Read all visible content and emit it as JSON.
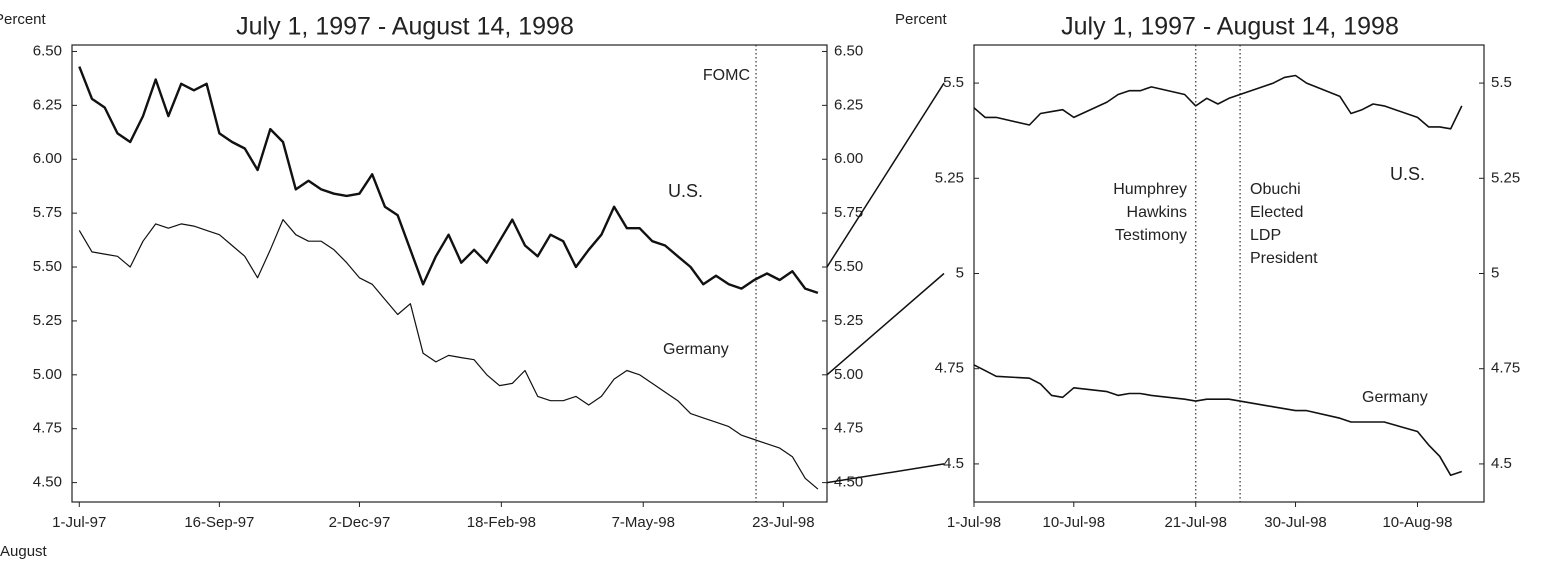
{
  "note": "August",
  "chart_data": [
    {
      "type": "line",
      "title": "July 1, 1997 - August 14, 1998",
      "ylabel": "Percent",
      "x": [
        "1997-07-01",
        "1997-07-08",
        "1997-07-15",
        "1997-07-22",
        "1997-07-29",
        "1997-08-05",
        "1997-08-12",
        "1997-08-19",
        "1997-08-26",
        "1997-09-02",
        "1997-09-09",
        "1997-09-16",
        "1997-09-23",
        "1997-09-30",
        "1997-10-07",
        "1997-10-14",
        "1997-10-21",
        "1997-10-28",
        "1997-11-04",
        "1997-11-11",
        "1997-11-18",
        "1997-11-25",
        "1997-12-02",
        "1997-12-09",
        "1997-12-16",
        "1997-12-23",
        "1997-12-30",
        "1998-01-06",
        "1998-01-13",
        "1998-01-20",
        "1998-01-27",
        "1998-02-03",
        "1998-02-10",
        "1998-02-17",
        "1998-02-24",
        "1998-03-03",
        "1998-03-10",
        "1998-03-17",
        "1998-03-24",
        "1998-03-31",
        "1998-04-07",
        "1998-04-14",
        "1998-04-21",
        "1998-04-28",
        "1998-05-05",
        "1998-05-12",
        "1998-05-19",
        "1998-05-26",
        "1998-06-02",
        "1998-06-09",
        "1998-06-16",
        "1998-06-23",
        "1998-06-30",
        "1998-07-07",
        "1998-07-14",
        "1998-07-21",
        "1998-07-28",
        "1998-08-04",
        "1998-08-11"
      ],
      "series": [
        {
          "name": "U.S.",
          "color": "#111111",
          "width": 2.4,
          "values": [
            6.43,
            6.28,
            6.24,
            6.12,
            6.08,
            6.2,
            6.37,
            6.2,
            6.35,
            6.32,
            6.35,
            6.12,
            6.08,
            6.05,
            5.95,
            6.14,
            6.08,
            5.86,
            5.9,
            5.86,
            5.84,
            5.83,
            5.84,
            5.93,
            5.78,
            5.74,
            5.58,
            5.42,
            5.55,
            5.65,
            5.52,
            5.58,
            5.52,
            5.62,
            5.72,
            5.6,
            5.55,
            5.65,
            5.62,
            5.5,
            5.58,
            5.65,
            5.78,
            5.68,
            5.68,
            5.62,
            5.6,
            5.55,
            5.5,
            5.42,
            5.46,
            5.42,
            5.4,
            5.44,
            5.47,
            5.44,
            5.48,
            5.4,
            5.38
          ]
        },
        {
          "name": "Germany",
          "color": "#111111",
          "width": 1.2,
          "values": [
            5.67,
            5.57,
            5.56,
            5.55,
            5.5,
            5.62,
            5.7,
            5.68,
            5.7,
            5.69,
            5.67,
            5.65,
            5.6,
            5.55,
            5.45,
            5.58,
            5.72,
            5.65,
            5.62,
            5.62,
            5.58,
            5.52,
            5.45,
            5.42,
            5.35,
            5.28,
            5.33,
            5.1,
            5.06,
            5.09,
            5.08,
            5.07,
            5,
            4.95,
            4.96,
            5.02,
            4.9,
            4.88,
            4.88,
            4.9,
            4.86,
            4.9,
            4.98,
            5.02,
            5,
            4.96,
            4.92,
            4.88,
            4.82,
            4.8,
            4.78,
            4.76,
            4.72,
            4.7,
            4.68,
            4.66,
            4.62,
            4.52,
            4.47
          ]
        }
      ],
      "vlines": [
        {
          "x": "1998-07-08",
          "label": "FOMC"
        }
      ],
      "annotations": [],
      "xlim": [
        "1997-06-27",
        "1998-08-16"
      ],
      "xticks": [
        {
          "value": "1997-07-01",
          "label": "1-Jul-97"
        },
        {
          "value": "1997-09-16",
          "label": "16-Sep-97"
        },
        {
          "value": "1997-12-02",
          "label": "2-Dec-97"
        },
        {
          "value": "1998-02-18",
          "label": "18-Feb-98"
        },
        {
          "value": "1998-05-07",
          "label": "7-May-98"
        },
        {
          "value": "1998-07-23",
          "label": "23-Jul-98"
        }
      ],
      "ylim": [
        4.41,
        6.53
      ],
      "yticks": [
        {
          "value": 6.5,
          "label": "6.50"
        },
        6.25,
        {
          "value": 6.0,
          "label": "6.00"
        },
        5.75,
        {
          "value": 5.5,
          "label": "5.50"
        },
        5.25,
        {
          "value": 5.0,
          "label": "5.00"
        },
        4.75,
        {
          "value": 4.5,
          "label": "4.50"
        }
      ],
      "y2lim": [
        4.41,
        6.53
      ],
      "y2ticks": [
        {
          "value": 6.5,
          "label": "6.50"
        },
        6.25,
        {
          "value": 6.0,
          "label": "6.00"
        },
        5.75,
        {
          "value": 5.5,
          "label": "5.50"
        },
        5.25,
        {
          "value": 5.0,
          "label": "5.00"
        },
        4.75,
        {
          "value": 4.5,
          "label": "4.50"
        }
      ]
    },
    {
      "type": "line",
      "title": "July 1, 1997 - August 14, 1998",
      "ylabel": "Percent",
      "x": [
        "1998-07-01",
        "1998-07-02",
        "1998-07-03",
        "1998-07-06",
        "1998-07-07",
        "1998-07-08",
        "1998-07-09",
        "1998-07-10",
        "1998-07-13",
        "1998-07-14",
        "1998-07-15",
        "1998-07-16",
        "1998-07-17",
        "1998-07-20",
        "1998-07-21",
        "1998-07-22",
        "1998-07-23",
        "1998-07-24",
        "1998-07-27",
        "1998-07-28",
        "1998-07-29",
        "1998-07-30",
        "1998-07-31",
        "1998-08-03",
        "1998-08-04",
        "1998-08-05",
        "1998-08-06",
        "1998-08-07",
        "1998-08-10",
        "1998-08-11",
        "1998-08-12",
        "1998-08-13",
        "1998-08-14"
      ],
      "series": [
        {
          "name": "U.S.",
          "color": "#111111",
          "width": 1.6,
          "values": [
            5.435,
            5.41,
            5.41,
            5.39,
            5.42,
            5.425,
            5.43,
            5.41,
            5.45,
            5.47,
            5.48,
            5.48,
            5.49,
            5.47,
            5.44,
            5.46,
            5.445,
            5.46,
            5.49,
            5.5,
            5.515,
            5.52,
            5.5,
            5.465,
            5.42,
            5.43,
            5.445,
            5.44,
            5.41,
            5.385,
            5.385,
            5.38,
            5.44
          ]
        },
        {
          "name": "Germany",
          "color": "#111111",
          "width": 1.6,
          "values": [
            4.76,
            4.745,
            4.73,
            4.725,
            4.71,
            4.68,
            4.675,
            4.7,
            4.69,
            4.68,
            4.685,
            4.685,
            4.68,
            4.67,
            4.665,
            4.67,
            4.67,
            4.67,
            4.655,
            4.65,
            4.645,
            4.64,
            4.64,
            4.62,
            4.61,
            4.61,
            4.61,
            4.61,
            4.585,
            4.55,
            4.52,
            4.47,
            4.48
          ]
        }
      ],
      "vlines": [
        {
          "x": "1998-07-21"
        },
        {
          "x": "1998-07-25"
        }
      ],
      "annotations": [
        "Humphrey",
        "Hawkins",
        "Testimony",
        "Obuchi",
        "Elected",
        "LDP",
        "President"
      ],
      "xlim": [
        "1998-07-01",
        "1998-08-16"
      ],
      "xticks": [
        {
          "value": "1998-07-01",
          "label": "1-Jul-98"
        },
        {
          "value": "1998-07-10",
          "label": "10-Jul-98"
        },
        {
          "value": "1998-07-21",
          "label": "21-Jul-98"
        },
        {
          "value": "1998-07-30",
          "label": "30-Jul-98"
        },
        {
          "value": "1998-08-10",
          "label": "10-Aug-98"
        }
      ],
      "ylim": [
        4.4,
        5.6
      ],
      "yticks": [
        5.5,
        5.25,
        5,
        4.75,
        4.5
      ],
      "y2lim": [
        4.4,
        5.6
      ],
      "y2ticks": [
        5.5,
        5.25,
        5,
        4.75,
        4.5
      ]
    }
  ]
}
